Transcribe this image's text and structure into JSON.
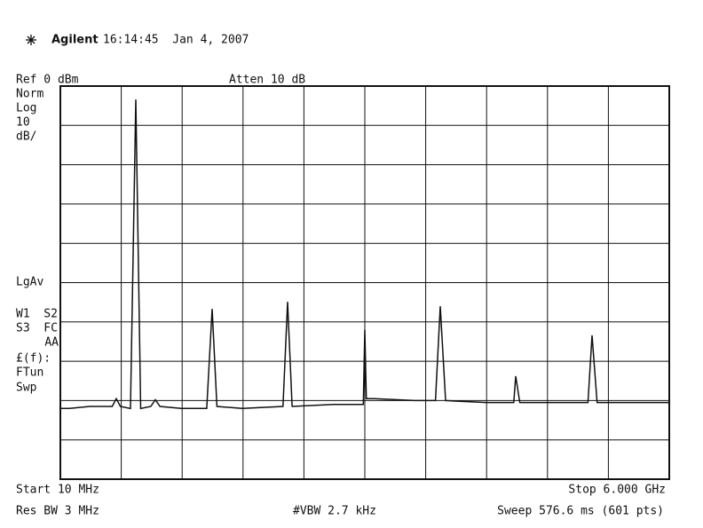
{
  "chart_data": {
    "type": "line",
    "brand": "Agilent",
    "timestamp": "16:14:45  Jan 4, 2007",
    "ref_level": "Ref 0 dBm",
    "attenuation": "Atten 10 dB",
    "left_labels": [
      "Norm",
      "Log",
      "10",
      "dB/",
      "LgAv",
      "W1  S2",
      "S3  FC",
      "AA",
      "£(f):",
      "FTun",
      "Swp"
    ],
    "start": "Start 10 MHz",
    "stop": "Stop 6.000 GHz",
    "rbw": "Res BW 3 MHz",
    "vbw": "#VBW 2.7 kHz",
    "sweep": "Sweep 576.6 ms (601 pts)",
    "x": [
      10,
      100,
      300,
      520,
      560,
      600,
      700,
      752,
      800,
      900,
      944,
      990,
      1200,
      1450,
      1503,
      1550,
      1800,
      2200,
      2245,
      2290,
      2700,
      2990,
      3005,
      3020,
      3100,
      3500,
      3700,
      3747,
      3800,
      4200,
      4470,
      4489,
      4530,
      5000,
      5200,
      5240,
      5290,
      6000
    ],
    "values": [
      -82,
      -82,
      -81.5,
      -81.5,
      -79.5,
      -81.5,
      -82,
      -3.4,
      -82,
      -81.5,
      -79.8,
      -81.5,
      -82,
      -82,
      -56.7,
      -81.5,
      -82,
      -81.5,
      -54.9,
      -81.5,
      -81,
      -81,
      -62,
      -79.5,
      -79.5,
      -80,
      -80,
      -56,
      -80,
      -80.5,
      -80.5,
      -73.8,
      -80.5,
      -80.5,
      -80.5,
      -63.4,
      -80.5,
      -80.5
    ],
    "color": "#111111",
    "xlim": [
      10,
      6000
    ],
    "ylim": [
      -100,
      0
    ],
    "xticks": [
      10,
      609,
      1208,
      1807,
      2406,
      3005,
      3604,
      4203,
      4802,
      5401,
      6000
    ],
    "yticks": [
      -100,
      -90,
      -80,
      -70,
      -60,
      -50,
      -40,
      -30,
      -20,
      -10,
      0
    ],
    "grid": true
  }
}
